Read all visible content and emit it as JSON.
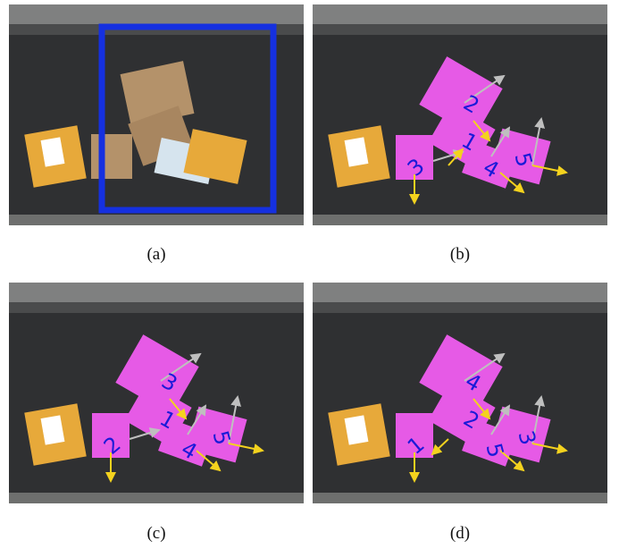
{
  "panels": [
    {
      "id": "a",
      "caption": "(a)"
    },
    {
      "id": "b",
      "caption": "(b)",
      "labels": [
        "1",
        "2",
        "3",
        "4",
        "5"
      ]
    },
    {
      "id": "c",
      "caption": "(c)",
      "labels": [
        "1",
        "2",
        "3",
        "4",
        "5"
      ]
    },
    {
      "id": "d",
      "caption": "(d)",
      "labels": [
        "1",
        "2",
        "3",
        "4",
        "5"
      ]
    }
  ],
  "colors": {
    "belt": "#2f3032",
    "rail": "#8e8f8c",
    "roi_box": "#1530e0",
    "mask": "#e65ae6",
    "label": "#1a1ad8",
    "arrow_grasp": "#f4d21e",
    "arrow_push": "#bfbfbf",
    "envelope": "#e7a93a",
    "cardboard": "#b4926a",
    "bubble_bag": "#d6e4ee"
  },
  "icons": [
    "roi-box-icon",
    "package-mask-icon",
    "direction-arrow-icon"
  ]
}
